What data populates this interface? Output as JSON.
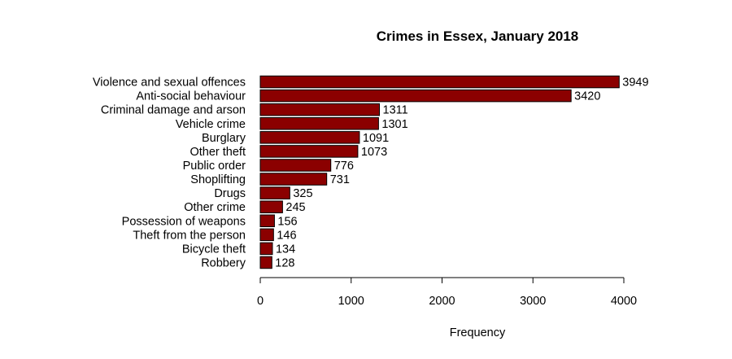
{
  "chart_data": {
    "type": "bar",
    "orientation": "horizontal",
    "title": "Crimes in Essex, January 2018",
    "xlabel": "Frequency",
    "ylabel": "",
    "categories": [
      "Violence and sexual offences",
      "Anti-social behaviour",
      "Criminal damage and arson",
      "Vehicle crime",
      "Burglary",
      "Other theft",
      "Public order",
      "Shoplifting",
      "Drugs",
      "Other crime",
      "Possession of weapons",
      "Theft from the person",
      "Bicycle theft",
      "Robbery"
    ],
    "values": [
      3949,
      3420,
      1311,
      1301,
      1091,
      1073,
      776,
      731,
      325,
      245,
      156,
      146,
      134,
      128
    ],
    "value_labels": [
      "3949",
      "3420",
      "1311",
      "1301",
      "1091",
      "1073",
      "776",
      "731",
      "325",
      "245",
      "156",
      "146",
      "134",
      "128"
    ],
    "xlim": [
      0,
      4000
    ],
    "xticks": [
      0,
      1000,
      2000,
      3000,
      4000
    ],
    "xtick_labels": [
      "0",
      "1000",
      "2000",
      "3000",
      "4000"
    ],
    "bar_color": "#8B0000",
    "grid": false,
    "legend": "none"
  }
}
